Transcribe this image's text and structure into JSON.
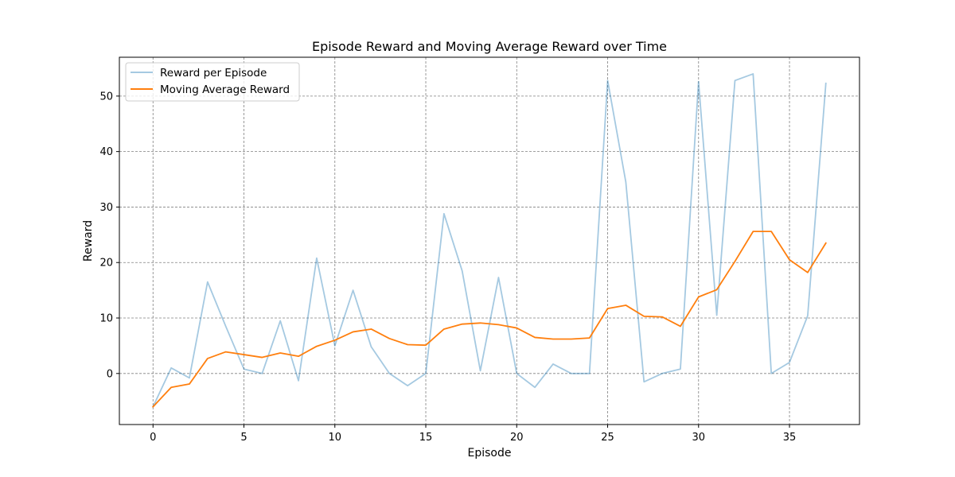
{
  "chart_data": {
    "type": "line",
    "title": "Episode Reward and Moving Average Reward over Time",
    "xlabel": "Episode",
    "ylabel": "Reward",
    "xlim": [
      -1.85,
      38.85
    ],
    "ylim": [
      -9.2,
      57.0
    ],
    "xticks": [
      0,
      5,
      10,
      15,
      20,
      25,
      30,
      35
    ],
    "yticks": [
      0,
      10,
      20,
      30,
      40,
      50
    ],
    "grid": true,
    "legend_position": "upper-left",
    "x": [
      0,
      1,
      2,
      3,
      4,
      5,
      6,
      7,
      8,
      9,
      10,
      11,
      12,
      13,
      14,
      15,
      16,
      17,
      18,
      19,
      20,
      21,
      22,
      23,
      24,
      25,
      26,
      27,
      28,
      29,
      30,
      31,
      32,
      33,
      34,
      35,
      36,
      37
    ],
    "series": [
      {
        "name": "Reward per Episode",
        "color": "#1f77b4",
        "opacity": 0.4,
        "values": [
          -6.0,
          1.0,
          -0.8,
          16.5,
          8.5,
          0.8,
          0.0,
          9.5,
          -1.3,
          20.8,
          5.0,
          15.0,
          4.8,
          0.0,
          -2.2,
          0.0,
          28.8,
          18.5,
          0.5,
          17.3,
          0.0,
          -2.5,
          1.7,
          0.0,
          0.0,
          52.8,
          34.5,
          -1.5,
          0.0,
          0.8,
          52.6,
          10.5,
          52.8,
          54.0,
          0.0,
          2.0,
          10.4,
          52.3
        ]
      },
      {
        "name": "Moving Average Reward",
        "color": "#ff7f0e",
        "opacity": 1,
        "values": [
          -6.0,
          -2.5,
          -1.9,
          2.7,
          3.9,
          3.4,
          2.9,
          3.7,
          3.1,
          4.9,
          6.0,
          7.5,
          8.0,
          6.3,
          5.2,
          5.1,
          8.0,
          8.9,
          9.1,
          8.8,
          8.2,
          6.5,
          6.2,
          6.2,
          6.4,
          11.7,
          12.3,
          10.3,
          10.2,
          8.5,
          13.8,
          15.1,
          20.2,
          25.6,
          25.6,
          20.5,
          18.2,
          23.5
        ]
      }
    ]
  }
}
